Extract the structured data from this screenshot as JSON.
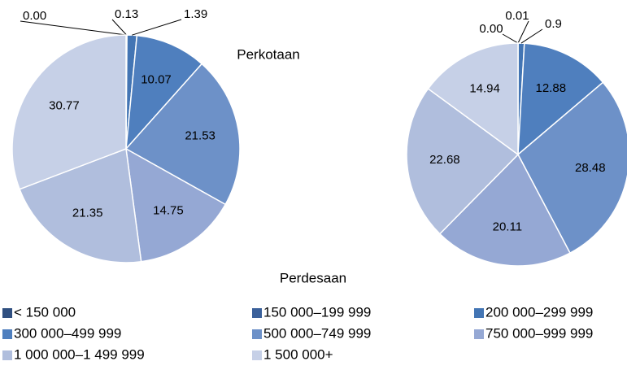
{
  "chart_data": [
    {
      "type": "pie",
      "title": "Perkotaan",
      "values": [
        0.0,
        0.13,
        1.39,
        10.07,
        21.53,
        14.75,
        21.35,
        30.77
      ],
      "value_labels": [
        "0.00",
        "0.13",
        "1.39",
        "10.07",
        "21.53",
        "14.75",
        "21.35",
        "30.77"
      ]
    },
    {
      "type": "pie",
      "title": "Perdesaan",
      "values": [
        0.0,
        0.01,
        0.9,
        12.88,
        28.48,
        20.11,
        22.68,
        14.94
      ],
      "value_labels": [
        "0.00",
        "0.01",
        "0.9",
        "12.88",
        "28.48",
        "20.11",
        "22.68",
        "14.94"
      ]
    }
  ],
  "legend": {
    "labels": [
      "< 150 000",
      "150 000–199 999",
      "200 000–299 999",
      "300 000–499 999",
      "500 000–749 999",
      "750 000–999 999",
      "1 000 000–1 499 999",
      "1 500 000+"
    ],
    "colors": [
      "#2f4f80",
      "#3a609a",
      "#4375b4",
      "#4f7fbe",
      "#6d91c8",
      "#95a8d4",
      "#b0bedd",
      "#c6d0e7"
    ]
  }
}
